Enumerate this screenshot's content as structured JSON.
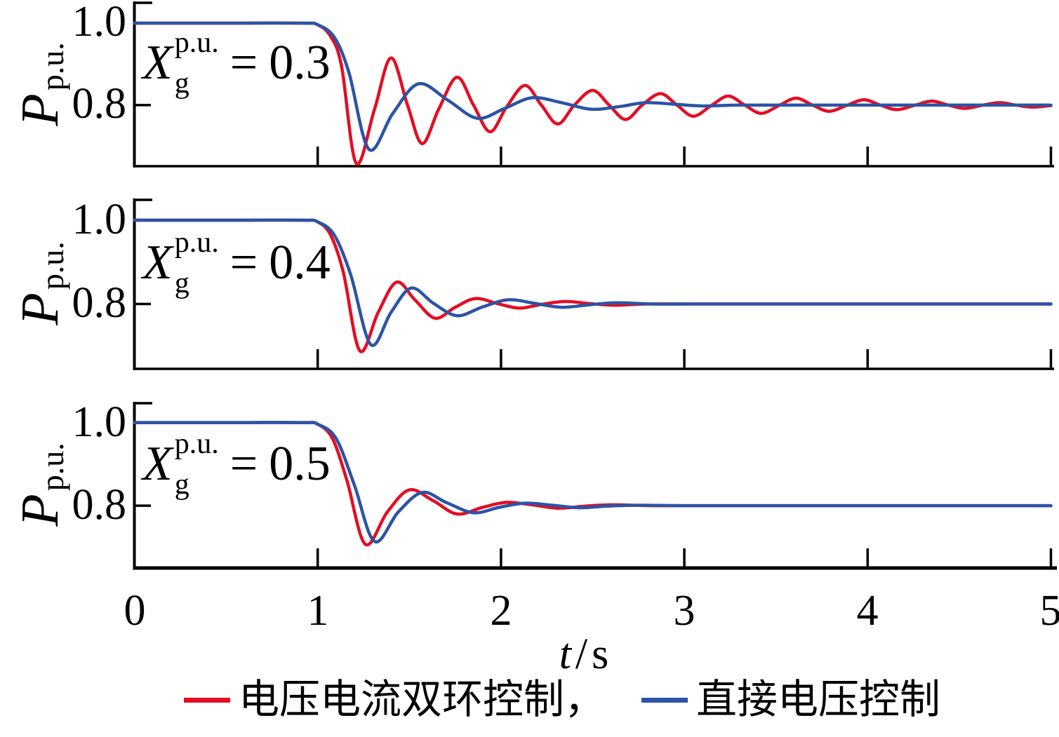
{
  "figure": {
    "background": "#ffffff"
  },
  "chart_data": {
    "type": "line",
    "layout": "three vertically stacked subplots sharing one x-axis",
    "xlim": [
      0,
      5
    ],
    "xlabel": {
      "var": "t",
      "sep": "/",
      "unit": "s"
    },
    "x_ticks": [
      "0",
      "1",
      "2",
      "3",
      "4",
      "5"
    ],
    "x_tick_values": [
      0,
      1,
      2,
      3,
      4,
      5
    ],
    "ylabel": {
      "main": "P",
      "sub": "p.u."
    },
    "ylim_display": [
      0.65,
      1.05
    ],
    "y_ticks": [
      {
        "value": 1.0,
        "label": "1.0"
      },
      {
        "value": 0.8,
        "label": "0.8"
      }
    ],
    "series_names": [
      "电压电流双环控制",
      "直接电压控制"
    ],
    "grid": false,
    "subplots": [
      {
        "annotation": {
          "var": "X",
          "sup": "p.u.",
          "sub": "g",
          "eq": "=",
          "value": "0.3"
        },
        "series": [
          {
            "name": "电压电流双环控制",
            "color": "#e30e22",
            "points": [
              [
                0,
                1.0
              ],
              [
                0.55,
                1.0
              ],
              [
                0.92,
                1.0
              ],
              [
                1.0,
                0.996
              ],
              [
                1.07,
                0.968
              ],
              [
                1.13,
                0.895
              ],
              [
                1.21,
                0.658
              ],
              [
                1.31,
                0.79
              ],
              [
                1.4,
                0.915
              ],
              [
                1.49,
                0.8
              ],
              [
                1.57,
                0.706
              ],
              [
                1.66,
                0.79
              ],
              [
                1.76,
                0.868
              ],
              [
                1.85,
                0.8
              ],
              [
                1.94,
                0.735
              ],
              [
                2.03,
                0.795
              ],
              [
                2.13,
                0.848
              ],
              [
                2.22,
                0.8
              ],
              [
                2.31,
                0.754
              ],
              [
                2.4,
                0.8
              ],
              [
                2.5,
                0.836
              ],
              [
                2.59,
                0.8
              ],
              [
                2.68,
                0.765
              ],
              [
                2.77,
                0.8
              ],
              [
                2.87,
                0.828
              ],
              [
                2.96,
                0.8
              ],
              [
                3.05,
                0.773
              ],
              [
                3.15,
                0.8
              ],
              [
                3.24,
                0.822
              ],
              [
                3.33,
                0.8
              ],
              [
                3.42,
                0.78
              ],
              [
                3.52,
                0.8
              ],
              [
                3.61,
                0.817
              ],
              [
                3.7,
                0.8
              ],
              [
                3.79,
                0.785
              ],
              [
                3.89,
                0.8
              ],
              [
                3.98,
                0.813
              ],
              [
                4.07,
                0.8
              ],
              [
                4.16,
                0.789
              ],
              [
                4.26,
                0.8
              ],
              [
                4.35,
                0.81
              ],
              [
                4.44,
                0.8
              ],
              [
                4.53,
                0.792
              ],
              [
                4.63,
                0.8
              ],
              [
                4.72,
                0.806
              ],
              [
                4.81,
                0.8
              ],
              [
                4.9,
                0.795
              ],
              [
                5.0,
                0.799
              ]
            ]
          },
          {
            "name": "直接电压控制",
            "color": "#2b54a6",
            "points": [
              [
                0,
                1.0
              ],
              [
                0.55,
                1.0
              ],
              [
                0.92,
                1.0
              ],
              [
                1.0,
                0.996
              ],
              [
                1.09,
                0.966
              ],
              [
                1.17,
                0.88
              ],
              [
                1.28,
                0.692
              ],
              [
                1.41,
                0.78
              ],
              [
                1.55,
                0.852
              ],
              [
                1.71,
                0.812
              ],
              [
                1.87,
                0.768
              ],
              [
                2.02,
                0.792
              ],
              [
                2.17,
                0.818
              ],
              [
                2.33,
                0.806
              ],
              [
                2.49,
                0.79
              ],
              [
                2.64,
                0.796
              ],
              [
                2.79,
                0.806
              ],
              [
                2.95,
                0.802
              ],
              [
                3.1,
                0.798
              ],
              [
                3.3,
                0.8
              ],
              [
                3.7,
                0.8
              ],
              [
                4.2,
                0.8
              ],
              [
                4.6,
                0.8
              ],
              [
                5.0,
                0.8
              ]
            ]
          }
        ]
      },
      {
        "annotation": {
          "var": "X",
          "sup": "p.u.",
          "sub": "g",
          "eq": "=",
          "value": "0.4"
        },
        "series": [
          {
            "name": "电压电流双环控制",
            "color": "#e30e22",
            "points": [
              [
                0,
                1.0
              ],
              [
                0.55,
                1.0
              ],
              [
                0.92,
                1.0
              ],
              [
                1.0,
                0.996
              ],
              [
                1.07,
                0.965
              ],
              [
                1.14,
                0.875
              ],
              [
                1.23,
                0.688
              ],
              [
                1.33,
                0.78
              ],
              [
                1.43,
                0.852
              ],
              [
                1.53,
                0.81
              ],
              [
                1.64,
                0.766
              ],
              [
                1.75,
                0.792
              ],
              [
                1.86,
                0.813
              ],
              [
                1.98,
                0.801
              ],
              [
                2.1,
                0.79
              ],
              [
                2.22,
                0.799
              ],
              [
                2.35,
                0.806
              ],
              [
                2.48,
                0.801
              ],
              [
                2.62,
                0.797
              ],
              [
                2.8,
                0.8
              ],
              [
                3.05,
                0.8
              ],
              [
                3.5,
                0.8
              ],
              [
                4.0,
                0.8
              ],
              [
                4.5,
                0.8
              ],
              [
                5.0,
                0.8
              ]
            ]
          },
          {
            "name": "直接电压控制",
            "color": "#2b54a6",
            "points": [
              [
                0,
                1.0
              ],
              [
                0.55,
                1.0
              ],
              [
                0.92,
                1.0
              ],
              [
                1.0,
                0.996
              ],
              [
                1.09,
                0.965
              ],
              [
                1.18,
                0.87
              ],
              [
                1.29,
                0.703
              ],
              [
                1.4,
                0.78
              ],
              [
                1.51,
                0.838
              ],
              [
                1.63,
                0.802
              ],
              [
                1.76,
                0.772
              ],
              [
                1.9,
                0.793
              ],
              [
                2.04,
                0.81
              ],
              [
                2.19,
                0.801
              ],
              [
                2.33,
                0.792
              ],
              [
                2.48,
                0.798
              ],
              [
                2.63,
                0.803
              ],
              [
                2.82,
                0.8
              ],
              [
                3.05,
                0.8
              ],
              [
                3.5,
                0.8
              ],
              [
                4.0,
                0.8
              ],
              [
                4.5,
                0.8
              ],
              [
                5.0,
                0.8
              ]
            ]
          }
        ]
      },
      {
        "annotation": {
          "var": "X",
          "sup": "p.u.",
          "sub": "g",
          "eq": "=",
          "value": "0.5"
        },
        "series": [
          {
            "name": "电压电流双环控制",
            "color": "#e30e22",
            "points": [
              [
                0,
                1.0
              ],
              [
                0.55,
                1.0
              ],
              [
                0.92,
                1.0
              ],
              [
                1.0,
                0.996
              ],
              [
                1.08,
                0.962
              ],
              [
                1.16,
                0.86
              ],
              [
                1.26,
                0.707
              ],
              [
                1.38,
                0.785
              ],
              [
                1.5,
                0.838
              ],
              [
                1.63,
                0.812
              ],
              [
                1.76,
                0.78
              ],
              [
                1.9,
                0.796
              ],
              [
                2.03,
                0.808
              ],
              [
                2.17,
                0.802
              ],
              [
                2.31,
                0.794
              ],
              [
                2.46,
                0.799
              ],
              [
                2.61,
                0.802
              ],
              [
                2.82,
                0.8
              ],
              [
                3.1,
                0.8
              ],
              [
                3.5,
                0.8
              ],
              [
                4.0,
                0.8
              ],
              [
                4.5,
                0.8
              ],
              [
                5.0,
                0.8
              ]
            ]
          },
          {
            "name": "直接电压控制",
            "color": "#2b54a6",
            "points": [
              [
                0,
                1.0
              ],
              [
                0.55,
                1.0
              ],
              [
                0.92,
                1.0
              ],
              [
                1.0,
                0.996
              ],
              [
                1.1,
                0.962
              ],
              [
                1.2,
                0.85
              ],
              [
                1.31,
                0.714
              ],
              [
                1.44,
                0.785
              ],
              [
                1.57,
                0.832
              ],
              [
                1.7,
                0.808
              ],
              [
                1.85,
                0.783
              ],
              [
                1.99,
                0.796
              ],
              [
                2.13,
                0.806
              ],
              [
                2.28,
                0.801
              ],
              [
                2.43,
                0.795
              ],
              [
                2.58,
                0.799
              ],
              [
                2.76,
                0.801
              ],
              [
                2.97,
                0.8
              ],
              [
                3.3,
                0.8
              ],
              [
                3.7,
                0.8
              ],
              [
                4.2,
                0.8
              ],
              [
                4.6,
                0.8
              ],
              [
                5.0,
                0.8
              ]
            ]
          }
        ]
      }
    ]
  },
  "legend": {
    "items": [
      {
        "label": "电压电流双环控制，",
        "color": "#e30e22"
      },
      {
        "label": "直接电压控制",
        "color": "#2b54a6"
      }
    ]
  }
}
